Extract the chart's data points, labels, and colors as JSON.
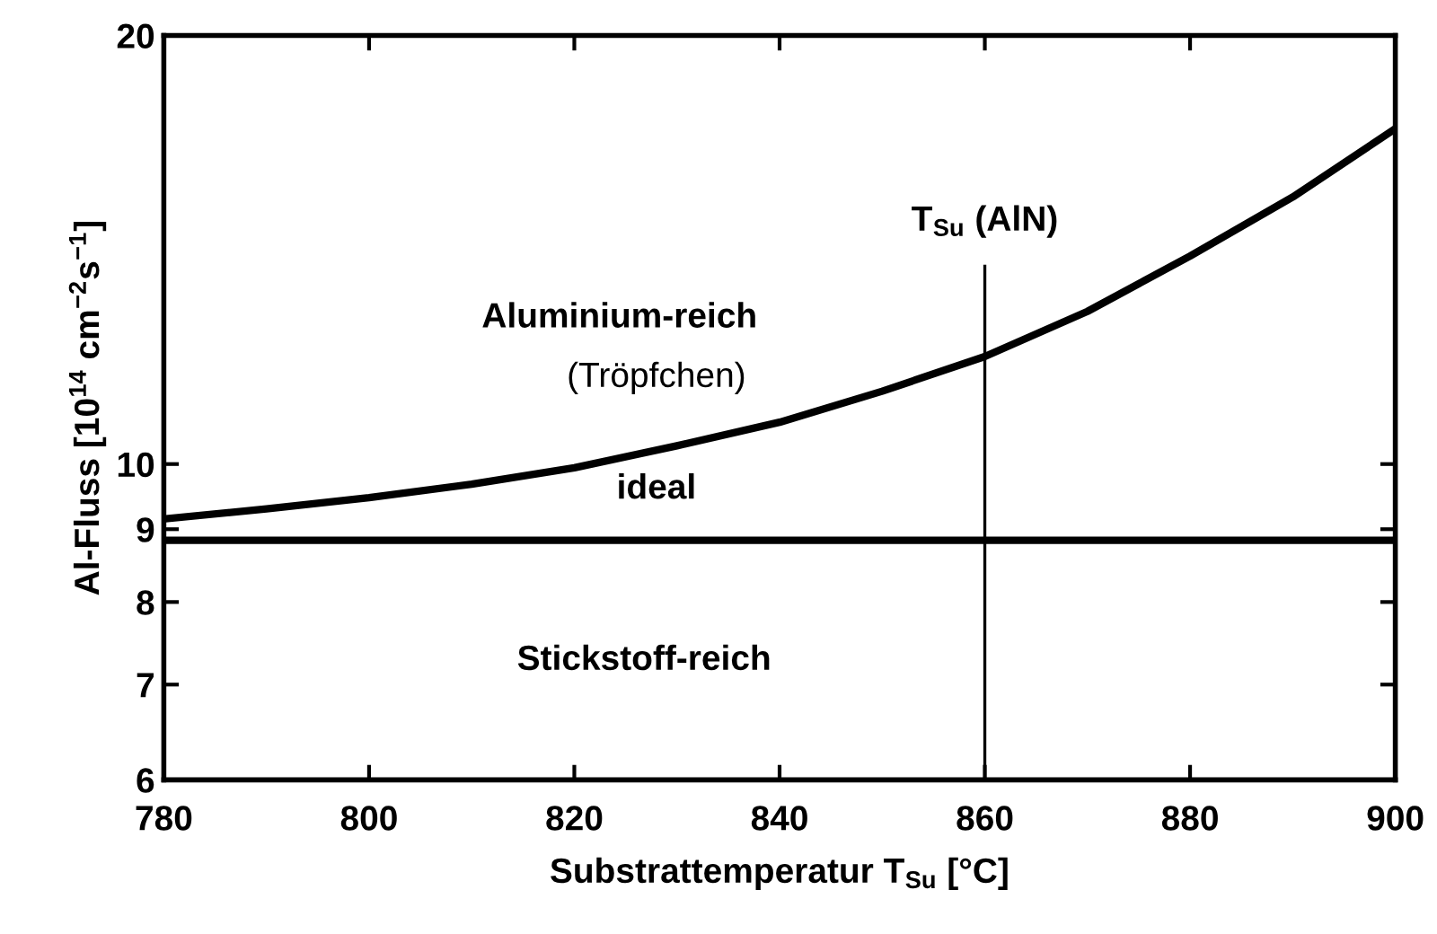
{
  "chart_data": {
    "type": "line",
    "xlabel": "Substrattemperatur T$_{Su}$ [°C]",
    "ylabel": "Al-Fluss [10$^{14}$ cm$^{−2}$s$^{−1}$]",
    "log": "y",
    "xlim": [
      780,
      900
    ],
    "xticks": [
      780,
      800,
      820,
      840,
      860,
      880,
      900
    ],
    "ylim": [
      6,
      20
    ],
    "yticks": [
      6,
      7,
      8,
      9,
      10,
      20
    ],
    "grid": false,
    "legend": false,
    "marker": "none",
    "line_style": "solid",
    "series": [
      {
        "color": "#000000",
        "x": [
          780,
          790,
          800,
          810,
          820,
          830,
          840,
          850,
          860,
          870,
          880,
          890,
          900
        ],
        "values": [
          9.15,
          9.3,
          9.47,
          9.68,
          9.94,
          10.3,
          10.7,
          11.25,
          11.9,
          12.8,
          14.0,
          15.4,
          17.2
        ]
      },
      {
        "color": "#000000",
        "x": [
          780,
          900
        ],
        "values": [
          8.84,
          8.84
        ]
      }
    ],
    "ref_lines": [
      {
        "axis": "x",
        "value": 860,
        "label": "T$_{Su}$ (AlN)",
        "color": "#000000"
      }
    ],
    "annotations": [
      "Aluminium-reich",
      "(Tröpfchen)",
      "ideal",
      "Stickstoff-reich"
    ]
  }
}
